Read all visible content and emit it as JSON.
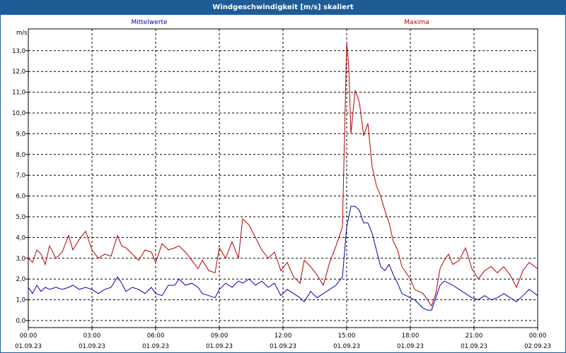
{
  "window": {
    "title": "Windgeschwindigkeit [m/s] skaliert"
  },
  "chart_data": {
    "type": "line",
    "title": "Windgeschwindigkeit [m/s] skaliert",
    "ylabel": "m/s",
    "xlabel": "",
    "ylim": [
      0,
      13.5
    ],
    "xlim": [
      0,
      24
    ],
    "grid": true,
    "legend": "top",
    "y_ticks": [
      "0,0",
      "1,0",
      "2,0",
      "3,0",
      "4,0",
      "5,0",
      "6,0",
      "7,0",
      "8,0",
      "9,0",
      "10,0",
      "11,0",
      "12,0",
      "13,0"
    ],
    "x_ticks": [
      {
        "time": "00:00",
        "date": "01.09.23"
      },
      {
        "time": "03:00",
        "date": "01.09.23"
      },
      {
        "time": "06:00",
        "date": "01.09.23"
      },
      {
        "time": "09:00",
        "date": "01.09.23"
      },
      {
        "time": "12:00",
        "date": "01.09.23"
      },
      {
        "time": "15:00",
        "date": "01.09.23"
      },
      {
        "time": "18:00",
        "date": "01.09.23"
      },
      {
        "time": "21:00",
        "date": "01.09.23"
      },
      {
        "time": "00:00",
        "date": "02.09.23"
      }
    ],
    "x_unit": "hours since 01.09.23 00:00",
    "series": [
      {
        "name": "Mittelwerte",
        "color": "#0000b4",
        "points": [
          [
            0.0,
            1.6
          ],
          [
            0.2,
            1.3
          ],
          [
            0.4,
            1.7
          ],
          [
            0.6,
            1.4
          ],
          [
            0.8,
            1.6
          ],
          [
            1.0,
            1.5
          ],
          [
            1.3,
            1.6
          ],
          [
            1.6,
            1.5
          ],
          [
            1.9,
            1.6
          ],
          [
            2.1,
            1.7
          ],
          [
            2.4,
            1.5
          ],
          [
            2.7,
            1.6
          ],
          [
            3.0,
            1.5
          ],
          [
            3.3,
            1.3
          ],
          [
            3.6,
            1.5
          ],
          [
            3.9,
            1.6
          ],
          [
            4.2,
            2.1
          ],
          [
            4.4,
            1.8
          ],
          [
            4.6,
            1.4
          ],
          [
            4.9,
            1.6
          ],
          [
            5.2,
            1.5
          ],
          [
            5.5,
            1.3
          ],
          [
            5.8,
            1.6
          ],
          [
            6.0,
            1.3
          ],
          [
            6.3,
            1.2
          ],
          [
            6.6,
            1.7
          ],
          [
            6.9,
            1.7
          ],
          [
            7.1,
            2.0
          ],
          [
            7.4,
            1.7
          ],
          [
            7.7,
            1.8
          ],
          [
            8.0,
            1.6
          ],
          [
            8.2,
            1.3
          ],
          [
            8.5,
            1.2
          ],
          [
            8.8,
            1.1
          ],
          [
            9.0,
            1.5
          ],
          [
            9.3,
            1.8
          ],
          [
            9.6,
            1.6
          ],
          [
            9.9,
            1.9
          ],
          [
            10.1,
            1.8
          ],
          [
            10.4,
            2.0
          ],
          [
            10.7,
            1.7
          ],
          [
            11.0,
            1.9
          ],
          [
            11.3,
            1.6
          ],
          [
            11.6,
            1.8
          ],
          [
            11.9,
            1.2
          ],
          [
            12.2,
            1.5
          ],
          [
            12.5,
            1.3
          ],
          [
            12.8,
            1.1
          ],
          [
            13.0,
            0.9
          ],
          [
            13.3,
            1.4
          ],
          [
            13.6,
            1.1
          ],
          [
            13.9,
            1.3
          ],
          [
            14.2,
            1.5
          ],
          [
            14.5,
            1.7
          ],
          [
            14.8,
            2.1
          ],
          [
            15.0,
            4.5
          ],
          [
            15.2,
            5.5
          ],
          [
            15.4,
            5.5
          ],
          [
            15.6,
            5.3
          ],
          [
            15.8,
            4.7
          ],
          [
            16.0,
            4.7
          ],
          [
            16.2,
            4.2
          ],
          [
            16.4,
            3.4
          ],
          [
            16.6,
            2.6
          ],
          [
            16.8,
            2.4
          ],
          [
            17.0,
            2.7
          ],
          [
            17.2,
            2.2
          ],
          [
            17.4,
            1.8
          ],
          [
            17.6,
            1.3
          ],
          [
            17.8,
            1.2
          ],
          [
            18.0,
            1.1
          ],
          [
            18.2,
            1.0
          ],
          [
            18.4,
            0.8
          ],
          [
            18.6,
            0.6
          ],
          [
            18.8,
            0.5
          ],
          [
            19.0,
            0.5
          ],
          [
            19.2,
            1.1
          ],
          [
            19.4,
            1.7
          ],
          [
            19.6,
            1.9
          ],
          [
            19.8,
            1.8
          ],
          [
            20.0,
            1.7
          ],
          [
            20.3,
            1.5
          ],
          [
            20.6,
            1.3
          ],
          [
            20.9,
            1.1
          ],
          [
            21.2,
            1.0
          ],
          [
            21.5,
            1.2
          ],
          [
            21.8,
            1.0
          ],
          [
            22.1,
            1.1
          ],
          [
            22.4,
            1.3
          ],
          [
            22.7,
            1.1
          ],
          [
            23.0,
            0.9
          ],
          [
            23.3,
            1.2
          ],
          [
            23.6,
            1.5
          ],
          [
            24.0,
            1.2
          ]
        ]
      },
      {
        "name": "Maxima",
        "color": "#b40000",
        "points": [
          [
            0.0,
            3.0
          ],
          [
            0.2,
            2.8
          ],
          [
            0.4,
            3.4
          ],
          [
            0.6,
            3.2
          ],
          [
            0.8,
            2.7
          ],
          [
            1.0,
            3.6
          ],
          [
            1.3,
            3.0
          ],
          [
            1.6,
            3.3
          ],
          [
            1.9,
            4.1
          ],
          [
            2.1,
            3.4
          ],
          [
            2.4,
            3.9
          ],
          [
            2.7,
            4.3
          ],
          [
            3.0,
            3.4
          ],
          [
            3.3,
            3.0
          ],
          [
            3.6,
            3.2
          ],
          [
            3.9,
            3.1
          ],
          [
            4.2,
            4.1
          ],
          [
            4.4,
            3.6
          ],
          [
            4.6,
            3.5
          ],
          [
            4.9,
            3.2
          ],
          [
            5.2,
            2.9
          ],
          [
            5.5,
            3.4
          ],
          [
            5.8,
            3.3
          ],
          [
            6.0,
            2.8
          ],
          [
            6.3,
            3.7
          ],
          [
            6.6,
            3.4
          ],
          [
            6.9,
            3.5
          ],
          [
            7.1,
            3.6
          ],
          [
            7.4,
            3.3
          ],
          [
            7.7,
            2.9
          ],
          [
            8.0,
            2.5
          ],
          [
            8.2,
            2.9
          ],
          [
            8.5,
            2.4
          ],
          [
            8.8,
            2.3
          ],
          [
            9.0,
            3.5
          ],
          [
            9.3,
            3.0
          ],
          [
            9.6,
            3.8
          ],
          [
            9.9,
            3.0
          ],
          [
            10.1,
            4.9
          ],
          [
            10.4,
            4.6
          ],
          [
            10.7,
            4.0
          ],
          [
            11.0,
            3.4
          ],
          [
            11.3,
            3.0
          ],
          [
            11.6,
            3.3
          ],
          [
            11.9,
            2.4
          ],
          [
            12.2,
            2.8
          ],
          [
            12.5,
            2.1
          ],
          [
            12.8,
            1.8
          ],
          [
            13.0,
            2.9
          ],
          [
            13.3,
            2.6
          ],
          [
            13.6,
            2.2
          ],
          [
            13.9,
            1.7
          ],
          [
            14.2,
            2.8
          ],
          [
            14.5,
            3.6
          ],
          [
            14.8,
            4.5
          ],
          [
            15.0,
            13.4
          ],
          [
            15.1,
            12.2
          ],
          [
            15.2,
            9.0
          ],
          [
            15.4,
            11.1
          ],
          [
            15.6,
            10.5
          ],
          [
            15.8,
            8.9
          ],
          [
            16.0,
            9.5
          ],
          [
            16.2,
            7.4
          ],
          [
            16.4,
            6.5
          ],
          [
            16.6,
            6.0
          ],
          [
            16.8,
            5.3
          ],
          [
            17.0,
            4.7
          ],
          [
            17.2,
            3.8
          ],
          [
            17.4,
            3.4
          ],
          [
            17.6,
            2.6
          ],
          [
            17.8,
            2.3
          ],
          [
            18.0,
            2.0
          ],
          [
            18.2,
            1.5
          ],
          [
            18.4,
            1.4
          ],
          [
            18.6,
            1.3
          ],
          [
            18.8,
            1.0
          ],
          [
            19.0,
            0.7
          ],
          [
            19.2,
            1.3
          ],
          [
            19.4,
            2.5
          ],
          [
            19.6,
            2.9
          ],
          [
            19.8,
            3.2
          ],
          [
            20.0,
            2.7
          ],
          [
            20.3,
            2.9
          ],
          [
            20.6,
            3.5
          ],
          [
            20.9,
            2.5
          ],
          [
            21.2,
            2.0
          ],
          [
            21.5,
            2.4
          ],
          [
            21.8,
            2.6
          ],
          [
            22.1,
            2.3
          ],
          [
            22.4,
            2.6
          ],
          [
            22.7,
            2.2
          ],
          [
            23.0,
            1.6
          ],
          [
            23.3,
            2.4
          ],
          [
            23.6,
            2.8
          ],
          [
            24.0,
            2.5
          ]
        ]
      }
    ]
  }
}
